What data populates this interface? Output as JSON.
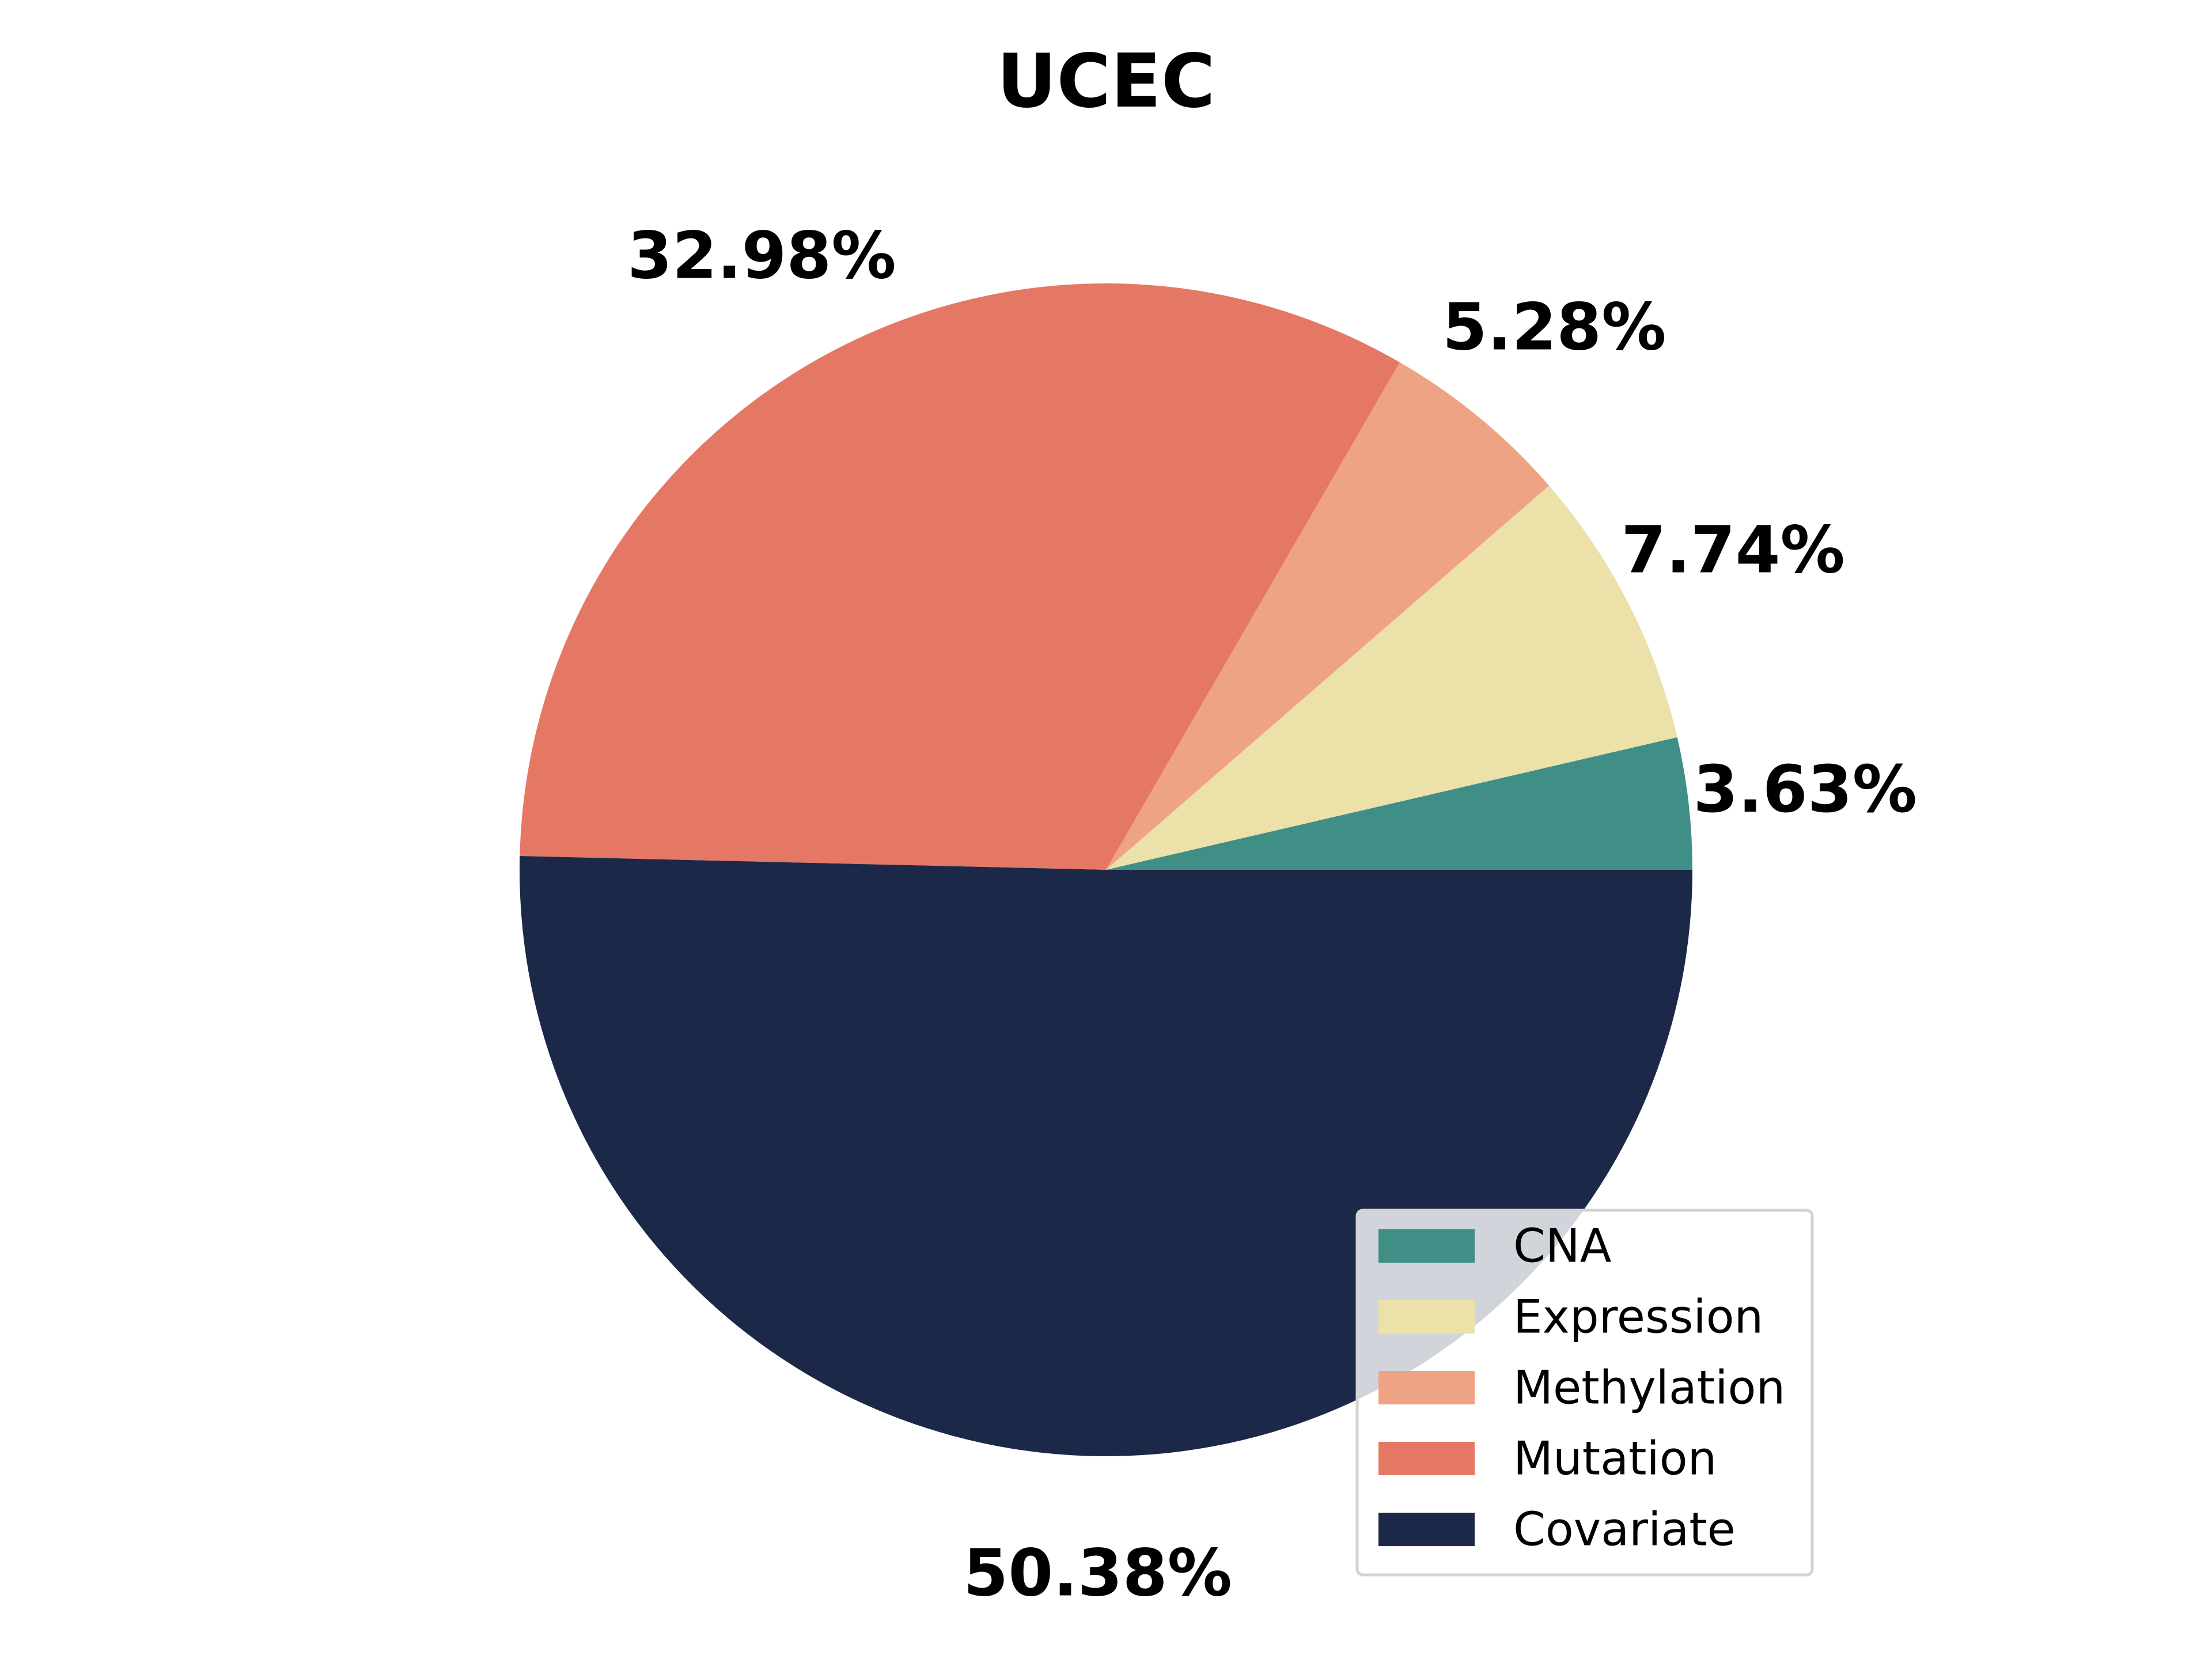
{
  "chart_data": {
    "type": "pie",
    "title": "UCEC",
    "slices": [
      {
        "label": "CNA",
        "value": 3.63,
        "display": "3.63%",
        "color": "#3f8f87"
      },
      {
        "label": "Expression",
        "value": 7.74,
        "display": "7.74%",
        "color": "#ebe1a9"
      },
      {
        "label": "Methylation",
        "value": 5.28,
        "display": "5.28%",
        "color": "#efa385"
      },
      {
        "label": "Mutation",
        "value": 32.98,
        "display": "32.98%",
        "color": "#e57865"
      },
      {
        "label": "Covariate",
        "value": 50.38,
        "display": "50.38%",
        "color": "#1c2848"
      }
    ],
    "start_angle_deg": 0,
    "direction": "counterclockwise",
    "legend_position": "lower-right"
  }
}
